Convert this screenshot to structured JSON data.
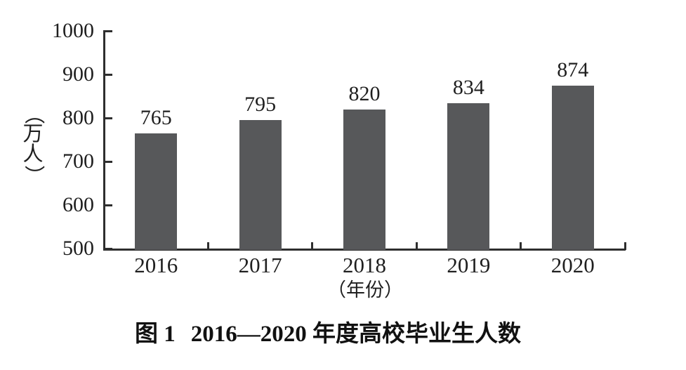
{
  "figure": {
    "caption": {
      "label": "图 1",
      "title": "2016—2020 年度高校毕业生人数"
    }
  },
  "chart_data": {
    "type": "bar",
    "title": "图 1 2016—2020 年度高校毕业生人数",
    "categories": [
      "2016",
      "2017",
      "2018",
      "2019",
      "2020"
    ],
    "values": [
      765,
      795,
      820,
      834,
      874
    ],
    "value_labels": [
      765,
      795,
      820,
      834,
      874
    ],
    "xlabel": "（年份）",
    "ylabel": "（万人）",
    "ylim": [
      500,
      1000
    ],
    "yticks": [
      500,
      600,
      700,
      800,
      900,
      1000
    ],
    "grid": false,
    "legend_position": "none",
    "bar_color": "#57585a",
    "axis_color": "#2e2e2e",
    "text_color": "#1f1f1f",
    "background_color": "#ffffff"
  }
}
